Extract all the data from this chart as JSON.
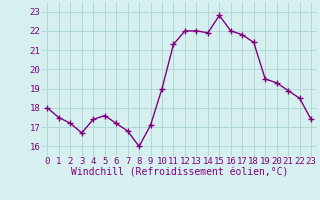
{
  "hours": [
    0,
    1,
    2,
    3,
    4,
    5,
    6,
    7,
    8,
    9,
    10,
    11,
    12,
    13,
    14,
    15,
    16,
    17,
    18,
    19,
    20,
    21,
    22,
    23
  ],
  "values": [
    18.0,
    17.5,
    17.2,
    16.7,
    17.4,
    17.6,
    17.2,
    16.8,
    16.0,
    17.1,
    19.0,
    21.3,
    22.0,
    22.0,
    21.9,
    22.8,
    22.0,
    21.8,
    21.4,
    19.5,
    19.3,
    18.9,
    18.5,
    17.4
  ],
  "line_color": "#800080",
  "marker": "+",
  "marker_size": 4,
  "bg_color": "#d6f0f0",
  "grid_color": "#b0d8d8",
  "xlabel": "Windchill (Refroidissement éolien,°C)",
  "xlabel_fontsize": 7,
  "ylim": [
    15.5,
    23.5
  ],
  "yticks": [
    16,
    17,
    18,
    19,
    20,
    21,
    22,
    23
  ],
  "xticks": [
    0,
    1,
    2,
    3,
    4,
    5,
    6,
    7,
    8,
    9,
    10,
    11,
    12,
    13,
    14,
    15,
    16,
    17,
    18,
    19,
    20,
    21,
    22,
    23
  ],
  "tick_label_fontsize": 6.5,
  "line_width": 1.0,
  "marker_edge_width": 1.0
}
